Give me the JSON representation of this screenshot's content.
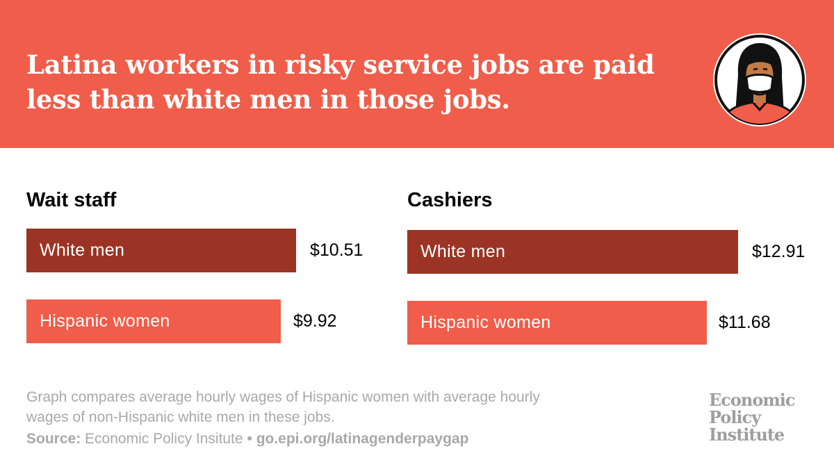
{
  "headline": "Latina workers in risky service jobs are paid less than white men in those jobs.",
  "colors": {
    "header_bg": "#f05d4a",
    "white_men": "#9b3424",
    "hispanic_women": "#f05d4a"
  },
  "icons": {
    "avatar": "masked-latina-worker-icon"
  },
  "chart_data": [
    {
      "type": "bar",
      "orientation": "horizontal",
      "title": "Wait staff",
      "categories": [
        "White men",
        "Hispanic women"
      ],
      "values": [
        10.51,
        9.92
      ],
      "value_labels": [
        "$10.51",
        "$9.92"
      ],
      "unit": "$ per hour"
    },
    {
      "type": "bar",
      "orientation": "horizontal",
      "title": "Cashiers",
      "categories": [
        "White men",
        "Hispanic women"
      ],
      "values": [
        12.91,
        11.68
      ],
      "value_labels": [
        "$12.91",
        "$11.68"
      ],
      "unit": "$ per hour"
    }
  ],
  "footnote": "Graph compares average hourly wages of Hispanic women with average hourly wages of non-Hispanic white men in these jobs.",
  "source": {
    "label": "Source:",
    "text": "Economic Policy Insitute",
    "separator": "•",
    "link": "go.epi.org/latinagenderpaygap"
  },
  "logo": {
    "lines": [
      "Economic",
      "Policy",
      "Institute"
    ]
  }
}
